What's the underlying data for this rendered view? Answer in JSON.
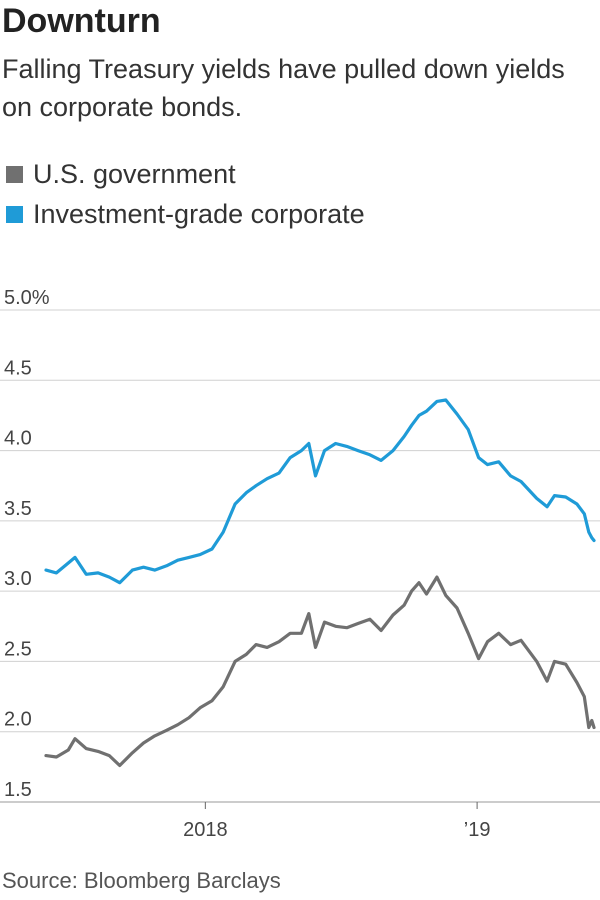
{
  "header": {
    "title": "Downturn",
    "subtitle": "Falling Treasury yields have pulled down yields on corporate bonds."
  },
  "legend": [
    {
      "label": "U.S. government",
      "color": "#707070"
    },
    {
      "label": "Investment-grade corporate",
      "color": "#1f9bd7"
    }
  ],
  "source": "Source: Bloomberg Barclays",
  "chart_data": {
    "type": "line",
    "title": "Downturn",
    "subtitle": "Falling Treasury yields have pulled down yields on corporate bonds.",
    "xlabel": "",
    "ylabel": "",
    "ylim": [
      1.5,
      5.0
    ],
    "xlim": [
      "2017-06-01",
      "2019-06-07"
    ],
    "y_ticks": [
      {
        "value": 5.0,
        "label": "5.0%"
      },
      {
        "value": 4.5,
        "label": "4.5"
      },
      {
        "value": 4.0,
        "label": "4.0"
      },
      {
        "value": 3.5,
        "label": "3.5"
      },
      {
        "value": 3.0,
        "label": "3.0"
      },
      {
        "value": 2.5,
        "label": "2.5"
      },
      {
        "value": 2.0,
        "label": "2.0"
      },
      {
        "value": 1.5,
        "label": "1.5"
      }
    ],
    "x_ticks": [
      {
        "value": "2018-01-01",
        "label": "2018"
      },
      {
        "value": "2019-01-01",
        "label": "’19"
      }
    ],
    "grid": "horizontal",
    "legend_position": "top-left",
    "series": [
      {
        "name": "U.S. government",
        "color": "#707070",
        "points": [
          [
            "2017-06-01",
            1.83
          ],
          [
            "2017-06-15",
            1.82
          ],
          [
            "2017-07-01",
            1.87
          ],
          [
            "2017-07-10",
            1.95
          ],
          [
            "2017-07-25",
            1.88
          ],
          [
            "2017-08-10",
            1.86
          ],
          [
            "2017-08-25",
            1.83
          ],
          [
            "2017-09-08",
            1.76
          ],
          [
            "2017-09-25",
            1.85
          ],
          [
            "2017-10-10",
            1.92
          ],
          [
            "2017-10-25",
            1.97
          ],
          [
            "2017-11-10",
            2.01
          ],
          [
            "2017-11-25",
            2.05
          ],
          [
            "2017-12-10",
            2.1
          ],
          [
            "2017-12-25",
            2.17
          ],
          [
            "2018-01-10",
            2.22
          ],
          [
            "2018-01-25",
            2.32
          ],
          [
            "2018-02-10",
            2.5
          ],
          [
            "2018-02-25",
            2.55
          ],
          [
            "2018-03-10",
            2.62
          ],
          [
            "2018-03-25",
            2.6
          ],
          [
            "2018-04-10",
            2.64
          ],
          [
            "2018-04-25",
            2.7
          ],
          [
            "2018-05-10",
            2.7
          ],
          [
            "2018-05-20",
            2.84
          ],
          [
            "2018-05-29",
            2.6
          ],
          [
            "2018-06-10",
            2.78
          ],
          [
            "2018-06-25",
            2.75
          ],
          [
            "2018-07-10",
            2.74
          ],
          [
            "2018-07-25",
            2.77
          ],
          [
            "2018-08-10",
            2.8
          ],
          [
            "2018-08-25",
            2.72
          ],
          [
            "2018-09-10",
            2.83
          ],
          [
            "2018-09-25",
            2.9
          ],
          [
            "2018-10-05",
            3.0
          ],
          [
            "2018-10-15",
            3.06
          ],
          [
            "2018-10-25",
            2.98
          ],
          [
            "2018-11-08",
            3.1
          ],
          [
            "2018-11-20",
            2.97
          ],
          [
            "2018-12-05",
            2.88
          ],
          [
            "2018-12-20",
            2.7
          ],
          [
            "2019-01-03",
            2.52
          ],
          [
            "2019-01-15",
            2.64
          ],
          [
            "2019-01-30",
            2.7
          ],
          [
            "2019-02-15",
            2.62
          ],
          [
            "2019-03-01",
            2.65
          ],
          [
            "2019-03-22",
            2.5
          ],
          [
            "2019-04-05",
            2.36
          ],
          [
            "2019-04-15",
            2.5
          ],
          [
            "2019-04-30",
            2.48
          ],
          [
            "2019-05-15",
            2.35
          ],
          [
            "2019-05-25",
            2.25
          ],
          [
            "2019-05-31",
            2.03
          ],
          [
            "2019-06-04",
            2.08
          ],
          [
            "2019-06-07",
            2.03
          ]
        ]
      },
      {
        "name": "Investment-grade corporate",
        "color": "#1f9bd7",
        "points": [
          [
            "2017-06-01",
            3.15
          ],
          [
            "2017-06-15",
            3.13
          ],
          [
            "2017-07-01",
            3.2
          ],
          [
            "2017-07-10",
            3.24
          ],
          [
            "2017-07-25",
            3.12
          ],
          [
            "2017-08-10",
            3.13
          ],
          [
            "2017-08-25",
            3.1
          ],
          [
            "2017-09-08",
            3.06
          ],
          [
            "2017-09-25",
            3.15
          ],
          [
            "2017-10-10",
            3.17
          ],
          [
            "2017-10-25",
            3.15
          ],
          [
            "2017-11-10",
            3.18
          ],
          [
            "2017-11-25",
            3.22
          ],
          [
            "2017-12-10",
            3.24
          ],
          [
            "2017-12-25",
            3.26
          ],
          [
            "2018-01-10",
            3.3
          ],
          [
            "2018-01-25",
            3.42
          ],
          [
            "2018-02-10",
            3.62
          ],
          [
            "2018-02-25",
            3.7
          ],
          [
            "2018-03-10",
            3.75
          ],
          [
            "2018-03-25",
            3.8
          ],
          [
            "2018-04-10",
            3.84
          ],
          [
            "2018-04-25",
            3.95
          ],
          [
            "2018-05-10",
            4.0
          ],
          [
            "2018-05-20",
            4.05
          ],
          [
            "2018-05-29",
            3.82
          ],
          [
            "2018-06-10",
            4.0
          ],
          [
            "2018-06-25",
            4.05
          ],
          [
            "2018-07-10",
            4.03
          ],
          [
            "2018-07-25",
            4.0
          ],
          [
            "2018-08-10",
            3.97
          ],
          [
            "2018-08-25",
            3.93
          ],
          [
            "2018-09-10",
            4.0
          ],
          [
            "2018-09-25",
            4.1
          ],
          [
            "2018-10-05",
            4.18
          ],
          [
            "2018-10-15",
            4.25
          ],
          [
            "2018-10-25",
            4.28
          ],
          [
            "2018-11-08",
            4.35
          ],
          [
            "2018-11-20",
            4.36
          ],
          [
            "2018-12-05",
            4.26
          ],
          [
            "2018-12-20",
            4.15
          ],
          [
            "2019-01-03",
            3.95
          ],
          [
            "2019-01-15",
            3.9
          ],
          [
            "2019-01-30",
            3.92
          ],
          [
            "2019-02-15",
            3.82
          ],
          [
            "2019-03-01",
            3.78
          ],
          [
            "2019-03-22",
            3.66
          ],
          [
            "2019-04-05",
            3.6
          ],
          [
            "2019-04-15",
            3.68
          ],
          [
            "2019-04-30",
            3.67
          ],
          [
            "2019-05-15",
            3.62
          ],
          [
            "2019-05-25",
            3.55
          ],
          [
            "2019-05-31",
            3.42
          ],
          [
            "2019-06-04",
            3.38
          ],
          [
            "2019-06-07",
            3.36
          ]
        ]
      }
    ]
  }
}
